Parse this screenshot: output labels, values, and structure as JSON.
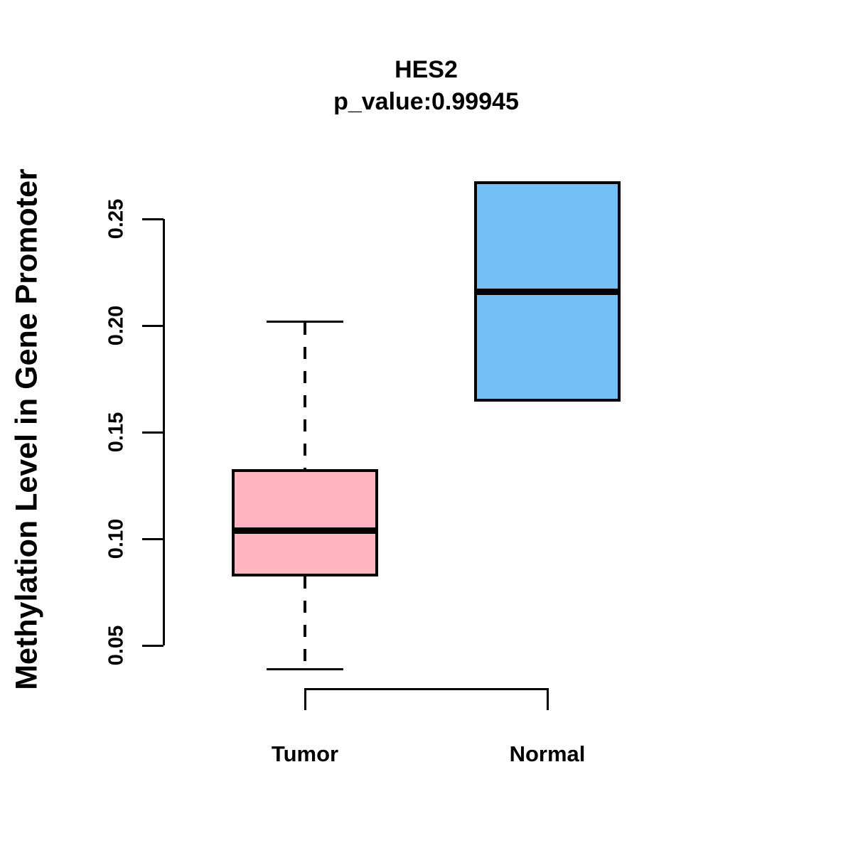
{
  "chart_data": {
    "type": "boxplot",
    "title": "HES2",
    "subtitle": "p_value:0.99945",
    "ylabel": "Methylation Level in Gene Promoter",
    "xlabel": "",
    "categories": [
      "Tumor",
      "Normal"
    ],
    "ytick_labels": [
      "0.05",
      "0.10",
      "0.15",
      "0.20",
      "0.25"
    ],
    "yticks": [
      0.05,
      0.1,
      0.15,
      0.2,
      0.25
    ],
    "ylim": [
      0.039,
      0.267
    ],
    "grid": false,
    "legend": "none",
    "line_color": "#000000",
    "background_color": "#ffffff",
    "series": [
      {
        "name": "Tumor",
        "color": "#FFB6C1",
        "whisker_low": 0.039,
        "q1": 0.083,
        "median": 0.104,
        "q3": 0.132,
        "whisker_high": 0.202,
        "whisker_style": "dashed"
      },
      {
        "name": "Normal",
        "color": "#74BFF7",
        "whisker_low": null,
        "q1": 0.165,
        "median": 0.216,
        "q3": 0.267,
        "whisker_high": null,
        "whisker_style": "none"
      }
    ]
  }
}
